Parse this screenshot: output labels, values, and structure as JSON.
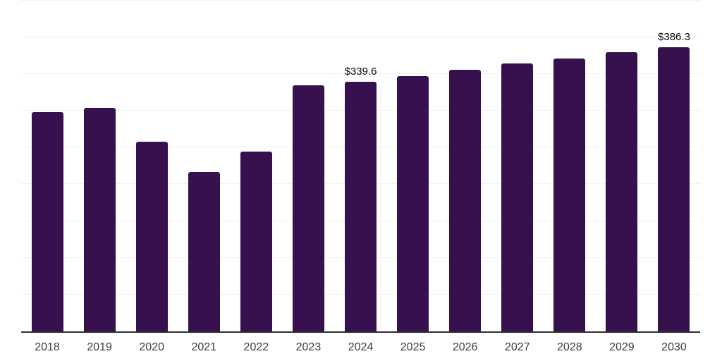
{
  "chart_data": {
    "type": "bar",
    "categories": [
      "2018",
      "2019",
      "2020",
      "2021",
      "2022",
      "2023",
      "2024",
      "2025",
      "2026",
      "2027",
      "2028",
      "2029",
      "2030"
    ],
    "values": [
      298.5,
      304.3,
      258.2,
      216.4,
      244.5,
      334.9,
      339.6,
      347.4,
      355.7,
      364.4,
      370.8,
      379.4,
      386.3
    ],
    "data_labels": {
      "2024": "$339.6",
      "2030": "$386.3"
    },
    "title": "",
    "xlabel": "",
    "ylabel": "",
    "ylim": [
      0,
      450
    ],
    "grid_interval": 50,
    "grid": "horizontal-only",
    "legend": "none",
    "bar_color": "#37114d",
    "axis_line_color": "#2f2f2f",
    "gridline_color": "#f1f1f1",
    "tick_label_color": "#3d3d3d",
    "data_label_color": "#0a0a0a",
    "background_color": "#ffffff"
  }
}
